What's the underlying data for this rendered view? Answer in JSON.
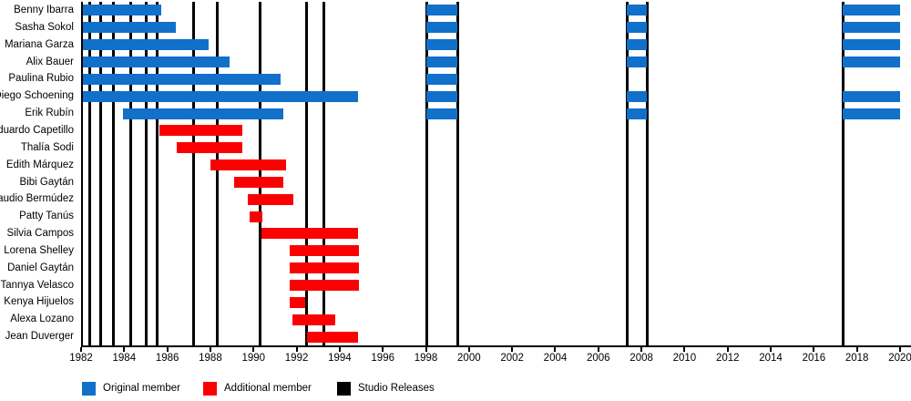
{
  "colors": {
    "original": "#1170C9",
    "additional": "#FB0000",
    "release": "#000000"
  },
  "legend": {
    "items": [
      {
        "label": "Original member",
        "color": "#1170C9",
        "swatch_name": "original-member-swatch"
      },
      {
        "label": "Additional member",
        "color": "#FB0000",
        "swatch_name": "additional-member-swatch"
      },
      {
        "label": "Studio Releases",
        "color": "#000000",
        "swatch_name": "studio-releases-swatch"
      }
    ]
  },
  "chart_data": {
    "type": "bar",
    "subtype": "gantt-timeline",
    "title": "",
    "xlabel": "",
    "ylabel": "",
    "x_axis": {
      "min": 1982,
      "max": 2020,
      "ticks": [
        1982,
        1984,
        1986,
        1988,
        1990,
        1992,
        1994,
        1996,
        1998,
        2000,
        2002,
        2004,
        2006,
        2008,
        2010,
        2012,
        2014,
        2016,
        2018,
        2020
      ]
    },
    "grid": false,
    "legend_position": "bottom",
    "studio_release_lines": [
      1982.4,
      1982.9,
      1983.5,
      1984.3,
      1985.0,
      1985.5,
      1987.2,
      1988.3,
      1990.3,
      1992.45,
      1993.25,
      1998.0,
      1999.45,
      2007.3,
      2008.25,
      2017.35
    ],
    "members": [
      {
        "name": "Benny Ibarra",
        "role": "original",
        "segments": [
          [
            1982.05,
            1985.7
          ],
          [
            1998.0,
            1999.45
          ],
          [
            2007.3,
            2008.25
          ],
          [
            2017.35,
            2020.0
          ]
        ]
      },
      {
        "name": "Sasha Sokol",
        "role": "original",
        "segments": [
          [
            1982.05,
            1986.4
          ],
          [
            1998.0,
            1999.45
          ],
          [
            2007.3,
            2008.25
          ],
          [
            2017.35,
            2020.0
          ]
        ]
      },
      {
        "name": "Mariana Garza",
        "role": "original",
        "segments": [
          [
            1982.05,
            1987.9
          ],
          [
            1998.0,
            1999.45
          ],
          [
            2007.3,
            2008.25
          ],
          [
            2017.35,
            2020.0
          ]
        ]
      },
      {
        "name": "Alix Bauer",
        "role": "original",
        "segments": [
          [
            1982.05,
            1988.9
          ],
          [
            1998.0,
            1999.45
          ],
          [
            2007.3,
            2008.25
          ],
          [
            2017.35,
            2020.0
          ]
        ]
      },
      {
        "name": "Paulina Rubio",
        "role": "original",
        "segments": [
          [
            1982.05,
            1991.25
          ],
          [
            1998.0,
            1999.45
          ]
        ]
      },
      {
        "name": "Diego Schoening",
        "role": "original",
        "segments": [
          [
            1982.05,
            1994.85
          ],
          [
            1998.0,
            1999.45
          ],
          [
            2007.3,
            2008.25
          ],
          [
            2017.35,
            2020.0
          ]
        ]
      },
      {
        "name": "Erik Rubín",
        "role": "original",
        "segments": [
          [
            1983.95,
            1991.4
          ],
          [
            1998.0,
            1999.45
          ],
          [
            2007.3,
            2008.25
          ],
          [
            2017.35,
            2020.0
          ]
        ]
      },
      {
        "name": "Eduardo Capetillo",
        "role": "additional",
        "segments": [
          [
            1985.65,
            1989.5
          ]
        ]
      },
      {
        "name": "Thalía Sodi",
        "role": "additional",
        "segments": [
          [
            1986.45,
            1989.5
          ]
        ]
      },
      {
        "name": "Edith Márquez",
        "role": "additional",
        "segments": [
          [
            1988.0,
            1991.5
          ]
        ]
      },
      {
        "name": "Bibi Gaytán",
        "role": "additional",
        "segments": [
          [
            1989.1,
            1991.4
          ]
        ]
      },
      {
        "name": "Claudio Bermúdez",
        "role": "additional",
        "segments": [
          [
            1989.75,
            1991.85
          ]
        ]
      },
      {
        "name": "Patty Tanús",
        "role": "additional",
        "segments": [
          [
            1989.8,
            1990.4
          ]
        ]
      },
      {
        "name": "Silvia Campos",
        "role": "additional",
        "segments": [
          [
            1990.35,
            1994.85
          ]
        ]
      },
      {
        "name": "Lorena Shelley",
        "role": "additional",
        "segments": [
          [
            1991.7,
            1994.9
          ]
        ]
      },
      {
        "name": "Daniel Gaytán",
        "role": "additional",
        "segments": [
          [
            1991.7,
            1994.9
          ]
        ]
      },
      {
        "name": "Tannya Velasco",
        "role": "additional",
        "segments": [
          [
            1991.7,
            1994.9
          ]
        ]
      },
      {
        "name": "Kenya Hijuelos",
        "role": "additional",
        "segments": [
          [
            1991.7,
            1992.4
          ]
        ]
      },
      {
        "name": "Alexa Lozano",
        "role": "additional",
        "segments": [
          [
            1991.8,
            1993.8
          ]
        ]
      },
      {
        "name": "Jean Duverger",
        "role": "additional",
        "segments": [
          [
            1992.5,
            1994.85
          ]
        ]
      }
    ]
  }
}
